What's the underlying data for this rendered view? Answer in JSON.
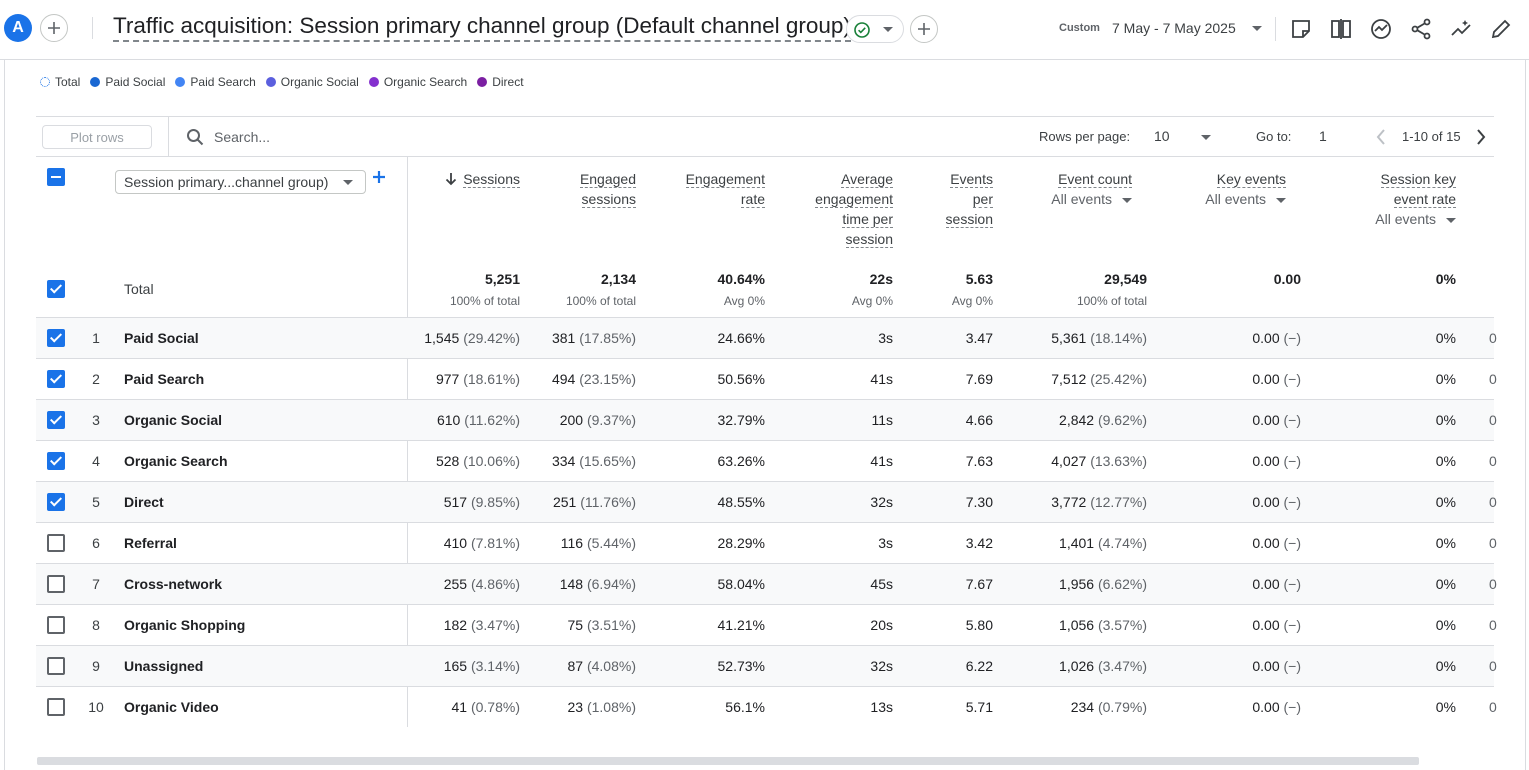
{
  "header": {
    "avatar_letter": "A",
    "title": "Traffic acquisition: Session primary channel group (Default channel group)",
    "date_range_label": "Custom",
    "date_range_value": "7 May - 7 May 2025"
  },
  "legend": [
    {
      "label": "Total",
      "color": "#1a73e8"
    },
    {
      "label": "Paid Social",
      "color": "#1967d2"
    },
    {
      "label": "Paid Search",
      "color": "#4285f4"
    },
    {
      "label": "Organic Social",
      "color": "#5b5fde"
    },
    {
      "label": "Organic Search",
      "color": "#8430ce"
    },
    {
      "label": "Direct",
      "color": "#7b1fa2"
    }
  ],
  "toolbar": {
    "plot_rows_label": "Plot rows",
    "search_placeholder": "Search...",
    "rows_per_page_label": "Rows per page:",
    "rows_per_page_value": "10",
    "goto_label": "Go to:",
    "goto_value": "1",
    "pagination_text": "1-10 of 15"
  },
  "table": {
    "dimension_selector": "Session primary...channel group)",
    "columns": {
      "sessions": "Sessions",
      "engaged_l1": "Engaged",
      "engaged_l2": "sessions",
      "engrate_l1": "Engagement",
      "engrate_l2": "rate",
      "avgtime_l1": "Average",
      "avgtime_l2": "engagement",
      "avgtime_l3": "time per",
      "avgtime_l4": "session",
      "eps_l1": "Events",
      "eps_l2": "per",
      "eps_l3": "session",
      "eventcount": "Event count",
      "eventcount_sub": "All events",
      "keyevents": "Key events",
      "keyevents_sub": "All events",
      "skr_l1": "Session key",
      "skr_l2": "event rate",
      "skr_sub": "All events"
    },
    "totals": {
      "label": "Total",
      "sessions": "5,251",
      "sessions_sub": "100% of total",
      "engaged": "2,134",
      "engaged_sub": "100% of total",
      "engrate": "40.64%",
      "engrate_sub": "Avg 0%",
      "avgtime": "22s",
      "avgtime_sub": "Avg 0%",
      "eps": "5.63",
      "eps_sub": "Avg 0%",
      "eventcount": "29,549",
      "eventcount_sub": "100% of total",
      "keyevents": "0.00",
      "skr": "0%"
    },
    "rows": [
      {
        "num": "1",
        "label": "Paid Social",
        "checked": true,
        "sessions": "1,545",
        "sessions_pct": "(29.42%)",
        "engaged": "381",
        "engaged_pct": "(17.85%)",
        "engrate": "24.66%",
        "avgtime": "3s",
        "eps": "3.47",
        "eventcount": "5,361",
        "eventcount_pct": "(18.14%)",
        "keyevents": "0.00",
        "keyevents_pct": "(−)",
        "skr": "0%",
        "trail": "0"
      },
      {
        "num": "2",
        "label": "Paid Search",
        "checked": true,
        "sessions": "977",
        "sessions_pct": "(18.61%)",
        "engaged": "494",
        "engaged_pct": "(23.15%)",
        "engrate": "50.56%",
        "avgtime": "41s",
        "eps": "7.69",
        "eventcount": "7,512",
        "eventcount_pct": "(25.42%)",
        "keyevents": "0.00",
        "keyevents_pct": "(−)",
        "skr": "0%",
        "trail": "0"
      },
      {
        "num": "3",
        "label": "Organic Social",
        "checked": true,
        "sessions": "610",
        "sessions_pct": "(11.62%)",
        "engaged": "200",
        "engaged_pct": "(9.37%)",
        "engrate": "32.79%",
        "avgtime": "11s",
        "eps": "4.66",
        "eventcount": "2,842",
        "eventcount_pct": "(9.62%)",
        "keyevents": "0.00",
        "keyevents_pct": "(−)",
        "skr": "0%",
        "trail": "0"
      },
      {
        "num": "4",
        "label": "Organic Search",
        "checked": true,
        "sessions": "528",
        "sessions_pct": "(10.06%)",
        "engaged": "334",
        "engaged_pct": "(15.65%)",
        "engrate": "63.26%",
        "avgtime": "41s",
        "eps": "7.63",
        "eventcount": "4,027",
        "eventcount_pct": "(13.63%)",
        "keyevents": "0.00",
        "keyevents_pct": "(−)",
        "skr": "0%",
        "trail": "0"
      },
      {
        "num": "5",
        "label": "Direct",
        "checked": true,
        "sessions": "517",
        "sessions_pct": "(9.85%)",
        "engaged": "251",
        "engaged_pct": "(11.76%)",
        "engrate": "48.55%",
        "avgtime": "32s",
        "eps": "7.30",
        "eventcount": "3,772",
        "eventcount_pct": "(12.77%)",
        "keyevents": "0.00",
        "keyevents_pct": "(−)",
        "skr": "0%",
        "trail": "0"
      },
      {
        "num": "6",
        "label": "Referral",
        "checked": false,
        "sessions": "410",
        "sessions_pct": "(7.81%)",
        "engaged": "116",
        "engaged_pct": "(5.44%)",
        "engrate": "28.29%",
        "avgtime": "3s",
        "eps": "3.42",
        "eventcount": "1,401",
        "eventcount_pct": "(4.74%)",
        "keyevents": "0.00",
        "keyevents_pct": "(−)",
        "skr": "0%",
        "trail": "0"
      },
      {
        "num": "7",
        "label": "Cross-network",
        "checked": false,
        "sessions": "255",
        "sessions_pct": "(4.86%)",
        "engaged": "148",
        "engaged_pct": "(6.94%)",
        "engrate": "58.04%",
        "avgtime": "45s",
        "eps": "7.67",
        "eventcount": "1,956",
        "eventcount_pct": "(6.62%)",
        "keyevents": "0.00",
        "keyevents_pct": "(−)",
        "skr": "0%",
        "trail": "0"
      },
      {
        "num": "8",
        "label": "Organic Shopping",
        "checked": false,
        "sessions": "182",
        "sessions_pct": "(3.47%)",
        "engaged": "75",
        "engaged_pct": "(3.51%)",
        "engrate": "41.21%",
        "avgtime": "20s",
        "eps": "5.80",
        "eventcount": "1,056",
        "eventcount_pct": "(3.57%)",
        "keyevents": "0.00",
        "keyevents_pct": "(−)",
        "skr": "0%",
        "trail": "0"
      },
      {
        "num": "9",
        "label": "Unassigned",
        "checked": false,
        "sessions": "165",
        "sessions_pct": "(3.14%)",
        "engaged": "87",
        "engaged_pct": "(4.08%)",
        "engrate": "52.73%",
        "avgtime": "32s",
        "eps": "6.22",
        "eventcount": "1,026",
        "eventcount_pct": "(3.47%)",
        "keyevents": "0.00",
        "keyevents_pct": "(−)",
        "skr": "0%",
        "trail": "0"
      },
      {
        "num": "10",
        "label": "Organic Video",
        "checked": false,
        "sessions": "41",
        "sessions_pct": "(0.78%)",
        "engaged": "23",
        "engaged_pct": "(1.08%)",
        "engrate": "56.1%",
        "avgtime": "13s",
        "eps": "5.71",
        "eventcount": "234",
        "eventcount_pct": "(0.79%)",
        "keyevents": "0.00",
        "keyevents_pct": "(−)",
        "skr": "0%",
        "trail": "0"
      }
    ]
  }
}
